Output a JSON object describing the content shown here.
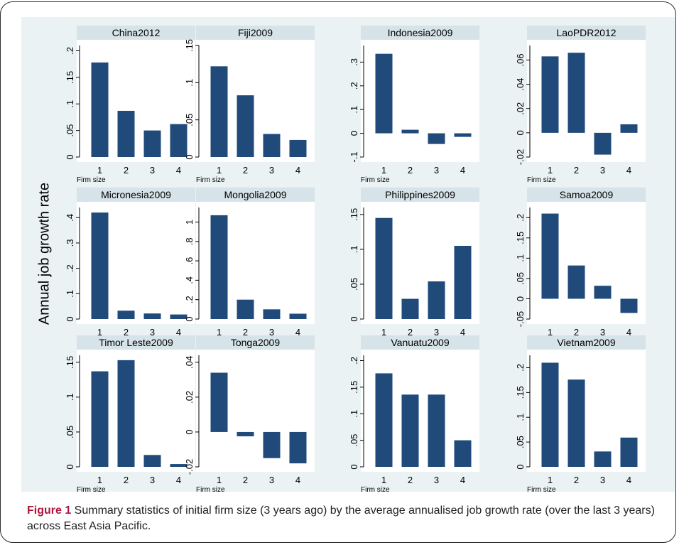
{
  "ylabel": "Annual job growth rate",
  "caption": {
    "label": "Figure 1",
    "text": " Summary statistics of initial firm size (3 years ago) by the average annualised job growth rate (over the last 3 years) across East Asia Pacific."
  },
  "colors": {
    "bar": "#1f4a7a",
    "panel_title_bg": "#d6e3e8",
    "figure_bg": "#eaf2f3",
    "plot_bg": "#ffffff"
  },
  "chart_data": [
    {
      "type": "bar",
      "title": "China2012",
      "categories": [
        "1",
        "2",
        "3",
        "4"
      ],
      "values": [
        0.178,
        0.087,
        0.05,
        0.062
      ],
      "xlabel": "Firm size",
      "ylim": [
        0,
        0.21
      ],
      "yticks": [
        0,
        0.05,
        0.1,
        0.15,
        0.2
      ],
      "ytick_labels": [
        "0",
        ".05",
        ".1",
        ".15",
        ".2"
      ]
    },
    {
      "type": "bar",
      "title": "Fiji2009",
      "categories": [
        "1",
        "2",
        "3",
        "4"
      ],
      "values": [
        0.122,
        0.083,
        0.031,
        0.023
      ],
      "xlabel": "Firm size",
      "ylim": [
        0,
        0.15
      ],
      "yticks": [
        0,
        0.05,
        0.1,
        0.15
      ],
      "ytick_labels": [
        "0",
        ".05",
        ".1",
        ".15"
      ]
    },
    {
      "type": "bar",
      "title": "Indonesia2009",
      "categories": [
        "1",
        "2",
        "3",
        "4"
      ],
      "values": [
        0.335,
        0.015,
        -0.045,
        -0.015
      ],
      "xlabel": "Firm size",
      "ylim": [
        -0.1,
        0.37
      ],
      "yticks": [
        -0.1,
        0,
        0.1,
        0.2,
        0.3
      ],
      "ytick_labels": [
        "-.1",
        "0",
        ".1",
        ".2",
        ".3"
      ]
    },
    {
      "type": "bar",
      "title": "LaoPDR2012",
      "categories": [
        "1",
        "2",
        "3",
        "4"
      ],
      "values": [
        0.063,
        0.066,
        -0.018,
        0.007
      ],
      "xlabel": "Firm size",
      "ylim": [
        -0.02,
        0.072
      ],
      "yticks": [
        -0.02,
        0,
        0.02,
        0.04,
        0.06
      ],
      "ytick_labels": [
        "-.02",
        "0",
        ".02",
        ".04",
        ".06"
      ]
    },
    {
      "type": "bar",
      "title": "Micronesia2009",
      "categories": [
        "1",
        "2",
        "3",
        "4"
      ],
      "values": [
        0.42,
        0.033,
        0.022,
        0.018
      ],
      "xlabel": "Firm size",
      "ylim": [
        0,
        0.44
      ],
      "yticks": [
        0,
        0.1,
        0.2,
        0.3,
        0.4
      ],
      "ytick_labels": [
        "0",
        ".1",
        ".2",
        ".3",
        ".4"
      ]
    },
    {
      "type": "bar",
      "title": "Mongolia2009",
      "categories": [
        "1",
        "2",
        "3",
        "4"
      ],
      "values": [
        1.07,
        0.2,
        0.1,
        0.055
      ],
      "xlabel": "Firm size",
      "ylim": [
        0,
        1.15
      ],
      "yticks": [
        0,
        0.2,
        0.4,
        0.6,
        0.8,
        1
      ],
      "ytick_labels": [
        "0",
        ".2",
        ".4",
        ".6",
        ".8",
        "1"
      ]
    },
    {
      "type": "bar",
      "title": "Philippines2009",
      "categories": [
        "1",
        "2",
        "3",
        "4"
      ],
      "values": [
        0.145,
        0.029,
        0.054,
        0.105
      ],
      "xlabel": "Firm size",
      "ylim": [
        0,
        0.16
      ],
      "yticks": [
        0,
        0.05,
        0.1,
        0.15
      ],
      "ytick_labels": [
        "0",
        ".05",
        ".1",
        ".15"
      ]
    },
    {
      "type": "bar",
      "title": "Samoa2009",
      "categories": [
        "1",
        "2",
        "3",
        "4"
      ],
      "values": [
        0.21,
        0.082,
        0.032,
        -0.035
      ],
      "xlabel": "Firm size",
      "ylim": [
        -0.05,
        0.225
      ],
      "yticks": [
        -0.05,
        0,
        0.05,
        0.1,
        0.15,
        0.2
      ],
      "ytick_labels": [
        "-.05",
        "0",
        ".05",
        ".1",
        ".15",
        ".2"
      ]
    },
    {
      "type": "bar",
      "title": "Timor Leste2009",
      "categories": [
        "1",
        "2",
        "3",
        "4"
      ],
      "values": [
        0.137,
        0.153,
        0.017,
        0.004
      ],
      "xlabel": "Firm size",
      "ylim": [
        0,
        0.16
      ],
      "yticks": [
        0,
        0.05,
        0.1,
        0.15
      ],
      "ytick_labels": [
        "0",
        ".05",
        ".1",
        ".15"
      ]
    },
    {
      "type": "bar",
      "title": "Tonga2009",
      "categories": [
        "1",
        "2",
        "3",
        "4"
      ],
      "values": [
        0.034,
        -0.0025,
        -0.015,
        -0.018
      ],
      "xlabel": "Firm size",
      "ylim": [
        -0.02,
        0.044
      ],
      "yticks": [
        -0.02,
        0,
        0.02,
        0.04
      ],
      "ytick_labels": [
        "-.02",
        "0",
        ".02",
        ".04"
      ]
    },
    {
      "type": "bar",
      "title": "Vanuatu2009",
      "categories": [
        "1",
        "2",
        "3",
        "4"
      ],
      "values": [
        0.176,
        0.136,
        0.136,
        0.05
      ],
      "xlabel": "Firm size",
      "ylim": [
        0,
        0.21
      ],
      "yticks": [
        0,
        0.05,
        0.1,
        0.15,
        0.2
      ],
      "ytick_labels": [
        "0",
        ".05",
        ".1",
        ".15",
        ".2"
      ]
    },
    {
      "type": "bar",
      "title": "Vietnam2009",
      "categories": [
        "1",
        "2",
        "3",
        "4"
      ],
      "values": [
        0.21,
        0.176,
        0.031,
        0.059
      ],
      "xlabel": "Firm size",
      "ylim": [
        0,
        0.225
      ],
      "yticks": [
        0,
        0.05,
        0.1,
        0.15,
        0.2
      ],
      "ytick_labels": [
        "0",
        ".05",
        ".1",
        ".15",
        ".2"
      ]
    }
  ]
}
